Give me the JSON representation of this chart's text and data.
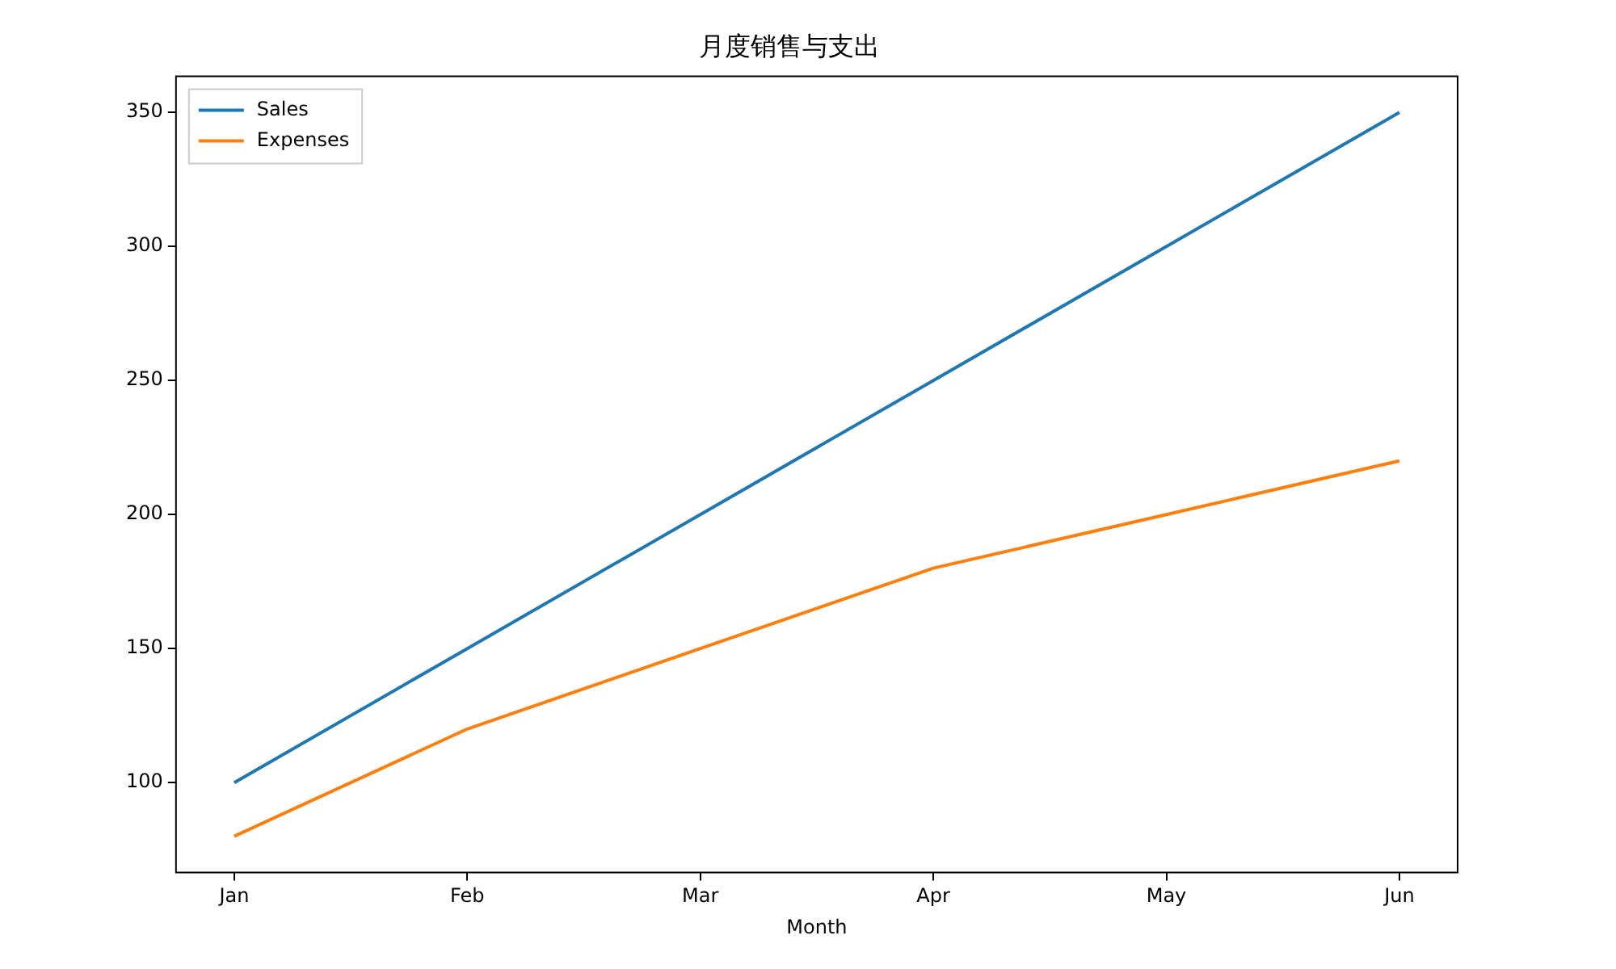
{
  "chart_data": {
    "type": "line",
    "title": "月度销售与支出",
    "xlabel": "Month",
    "categories": [
      "Jan",
      "Feb",
      "Mar",
      "Apr",
      "May",
      "Jun"
    ],
    "series": [
      {
        "name": "Sales",
        "color": "#1f77b4",
        "values": [
          100,
          150,
          200,
          250,
          300,
          350
        ]
      },
      {
        "name": "Expenses",
        "color": "#ff7f0e",
        "values": [
          80,
          120,
          150,
          180,
          200,
          220
        ]
      }
    ],
    "ylim": [
      66.5,
      363.5
    ],
    "yticks": [
      100,
      150,
      200,
      250,
      300,
      350
    ],
    "grid": false,
    "legend": "top left",
    "marker": "none",
    "line_style": "solid"
  }
}
